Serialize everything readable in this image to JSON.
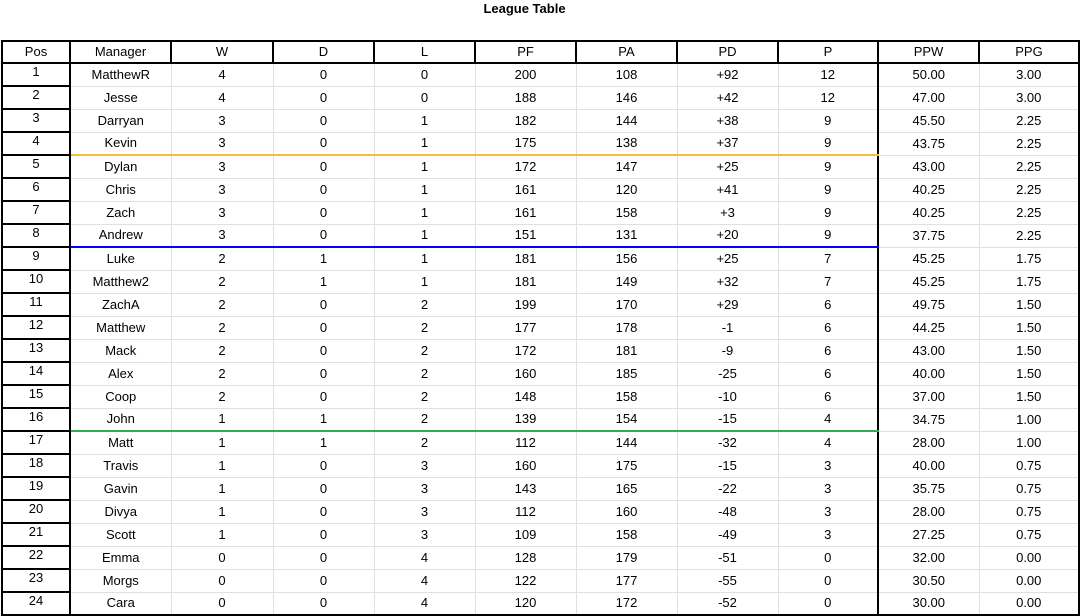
{
  "title": "League Table",
  "columns": [
    "Pos",
    "Manager",
    "W",
    "D",
    "L",
    "PF",
    "PA",
    "PD",
    "P",
    "PPW",
    "PPG"
  ],
  "separators": {
    "after_4": "#f1c232",
    "after_8": "#0000ff",
    "after_16": "#34a853"
  },
  "rows": [
    [
      "1",
      "MatthewR",
      "4",
      "0",
      "0",
      "200",
      "108",
      "+92",
      "12",
      "50.00",
      "3.00"
    ],
    [
      "2",
      "Jesse",
      "4",
      "0",
      "0",
      "188",
      "146",
      "+42",
      "12",
      "47.00",
      "3.00"
    ],
    [
      "3",
      "Darryan",
      "3",
      "0",
      "1",
      "182",
      "144",
      "+38",
      "9",
      "45.50",
      "2.25"
    ],
    [
      "4",
      "Kevin",
      "3",
      "0",
      "1",
      "175",
      "138",
      "+37",
      "9",
      "43.75",
      "2.25"
    ],
    [
      "5",
      "Dylan",
      "3",
      "0",
      "1",
      "172",
      "147",
      "+25",
      "9",
      "43.00",
      "2.25"
    ],
    [
      "6",
      "Chris",
      "3",
      "0",
      "1",
      "161",
      "120",
      "+41",
      "9",
      "40.25",
      "2.25"
    ],
    [
      "7",
      "Zach",
      "3",
      "0",
      "1",
      "161",
      "158",
      "+3",
      "9",
      "40.25",
      "2.25"
    ],
    [
      "8",
      "Andrew",
      "3",
      "0",
      "1",
      "151",
      "131",
      "+20",
      "9",
      "37.75",
      "2.25"
    ],
    [
      "9",
      "Luke",
      "2",
      "1",
      "1",
      "181",
      "156",
      "+25",
      "7",
      "45.25",
      "1.75"
    ],
    [
      "10",
      "Matthew2",
      "2",
      "1",
      "1",
      "181",
      "149",
      "+32",
      "7",
      "45.25",
      "1.75"
    ],
    [
      "11",
      "ZachA",
      "2",
      "0",
      "2",
      "199",
      "170",
      "+29",
      "6",
      "49.75",
      "1.50"
    ],
    [
      "12",
      "Matthew",
      "2",
      "0",
      "2",
      "177",
      "178",
      "-1",
      "6",
      "44.25",
      "1.50"
    ],
    [
      "13",
      "Mack",
      "2",
      "0",
      "2",
      "172",
      "181",
      "-9",
      "6",
      "43.00",
      "1.50"
    ],
    [
      "14",
      "Alex",
      "2",
      "0",
      "2",
      "160",
      "185",
      "-25",
      "6",
      "40.00",
      "1.50"
    ],
    [
      "15",
      "Coop",
      "2",
      "0",
      "2",
      "148",
      "158",
      "-10",
      "6",
      "37.00",
      "1.50"
    ],
    [
      "16",
      "John",
      "1",
      "1",
      "2",
      "139",
      "154",
      "-15",
      "4",
      "34.75",
      "1.00"
    ],
    [
      "17",
      "Matt",
      "1",
      "1",
      "2",
      "112",
      "144",
      "-32",
      "4",
      "28.00",
      "1.00"
    ],
    [
      "18",
      "Travis",
      "1",
      "0",
      "3",
      "160",
      "175",
      "-15",
      "3",
      "40.00",
      "0.75"
    ],
    [
      "19",
      "Gavin",
      "1",
      "0",
      "3",
      "143",
      "165",
      "-22",
      "3",
      "35.75",
      "0.75"
    ],
    [
      "20",
      "Divya",
      "1",
      "0",
      "3",
      "112",
      "160",
      "-48",
      "3",
      "28.00",
      "0.75"
    ],
    [
      "21",
      "Scott",
      "1",
      "0",
      "3",
      "109",
      "158",
      "-49",
      "3",
      "27.25",
      "0.75"
    ],
    [
      "22",
      "Emma",
      "0",
      "0",
      "4",
      "128",
      "179",
      "-51",
      "0",
      "32.00",
      "0.00"
    ],
    [
      "23",
      "Morgs",
      "0",
      "0",
      "4",
      "122",
      "177",
      "-55",
      "0",
      "30.50",
      "0.00"
    ],
    [
      "24",
      "Cara",
      "0",
      "0",
      "4",
      "120",
      "172",
      "-52",
      "0",
      "30.00",
      "0.00"
    ]
  ]
}
